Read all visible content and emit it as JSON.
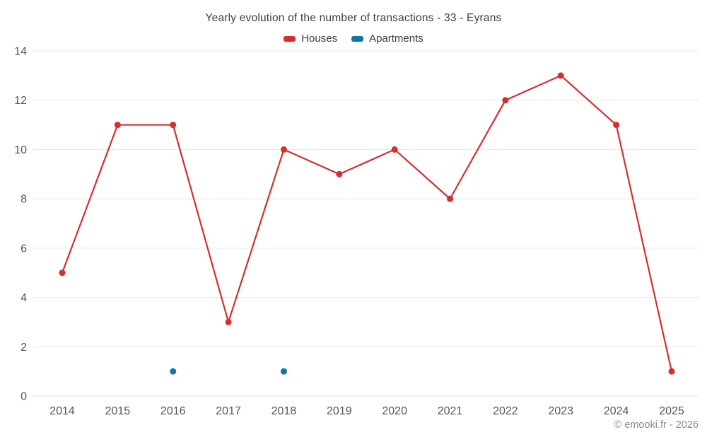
{
  "chart_data": {
    "type": "line",
    "title": "Yearly evolution of the number of transactions - 33 - Eyrans",
    "categories": [
      "2014",
      "2015",
      "2016",
      "2017",
      "2018",
      "2019",
      "2020",
      "2021",
      "2022",
      "2023",
      "2024",
      "2025"
    ],
    "series": [
      {
        "name": "Houses",
        "color": "#d32f2f",
        "draw_line": true,
        "values": [
          5,
          11,
          11,
          3,
          10,
          9,
          10,
          8,
          12,
          13,
          11,
          1
        ]
      },
      {
        "name": "Apartments",
        "color": "#0f74a8",
        "draw_line": false,
        "values": [
          null,
          null,
          1,
          null,
          1,
          null,
          null,
          null,
          null,
          null,
          null,
          null
        ]
      }
    ],
    "xlabel": "",
    "ylabel": "",
    "ylim": [
      0,
      14
    ],
    "yticks": [
      0,
      2,
      4,
      6,
      8,
      10,
      12,
      14
    ],
    "grid": "horizontal",
    "legend_position": "top"
  },
  "footer": {
    "copyright": "© emooki.fr - 2026"
  },
  "colors": {
    "grid": "#e7e7ec",
    "tick_text": "#565656",
    "title_text": "#3d3d3d"
  }
}
